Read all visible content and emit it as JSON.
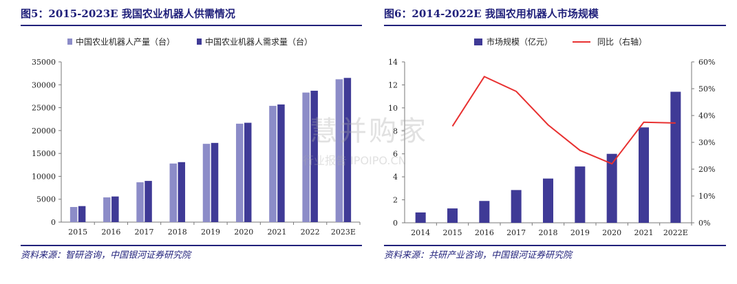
{
  "left": {
    "title": "图5：2015-2023E 我国农业机器人供需情况",
    "source": "资料来源：智研咨询，中国银河证券研究院"
  },
  "right": {
    "title": "图6：2014-2022E 我国农用机器人市场规模",
    "source": "资料来源：共研产业咨询，中国银河证券研究院"
  },
  "watermark": {
    "main": "慧并购家",
    "sub": "行业报告 IPOIPO.CN"
  },
  "colors": {
    "title": "#1f1f7a",
    "production": "#8c8cc8",
    "demand": "#3f3a96",
    "market": "#3f3a96",
    "yoy": "#e83030"
  },
  "chart_data": [
    {
      "type": "bar",
      "categories": [
        "2015",
        "2016",
        "2017",
        "2018",
        "2019",
        "2020",
        "2021",
        "2022",
        "2023E"
      ],
      "series": [
        {
          "name": "中国农业机器人产量（台）",
          "values": [
            3300,
            5400,
            8700,
            12800,
            17100,
            21500,
            25400,
            28300,
            31200
          ]
        },
        {
          "name": "中国农业机器人需求量（台）",
          "values": [
            3500,
            5600,
            9000,
            13100,
            17300,
            21700,
            25700,
            28700,
            31500
          ]
        }
      ],
      "ylim": [
        0,
        35000
      ],
      "yticks": [
        0,
        5000,
        10000,
        15000,
        20000,
        25000,
        30000,
        35000
      ],
      "ytick_labels": [
        "0",
        "5000",
        "10000",
        "15000",
        "20000",
        "25000",
        "30000",
        "35000"
      ],
      "legend": "top",
      "grid": false
    },
    {
      "type": "bar",
      "categories": [
        "2014",
        "2015",
        "2016",
        "2017",
        "2018",
        "2019",
        "2020",
        "2021",
        "2022E"
      ],
      "series": [
        {
          "name": "市场规模（亿元）",
          "type": "bar",
          "axis": "left",
          "values": [
            0.9,
            1.25,
            1.9,
            2.85,
            3.85,
            4.9,
            6.0,
            8.3,
            11.4
          ]
        },
        {
          "name": "同比（右轴）",
          "type": "line",
          "axis": "right",
          "values": [
            null,
            0.36,
            0.545,
            0.49,
            0.365,
            0.27,
            0.22,
            0.375,
            0.372
          ]
        }
      ],
      "ylim": [
        0,
        14
      ],
      "yticks": [
        0,
        2,
        4,
        6,
        8,
        10,
        12,
        14
      ],
      "y2lim": [
        0,
        0.6
      ],
      "y2ticks": [
        0,
        0.1,
        0.2,
        0.3,
        0.4,
        0.5,
        0.6
      ],
      "y2tick_labels": [
        "0%",
        "10%",
        "20%",
        "30%",
        "40%",
        "50%",
        "60%"
      ],
      "legend": "top",
      "grid": false
    }
  ]
}
